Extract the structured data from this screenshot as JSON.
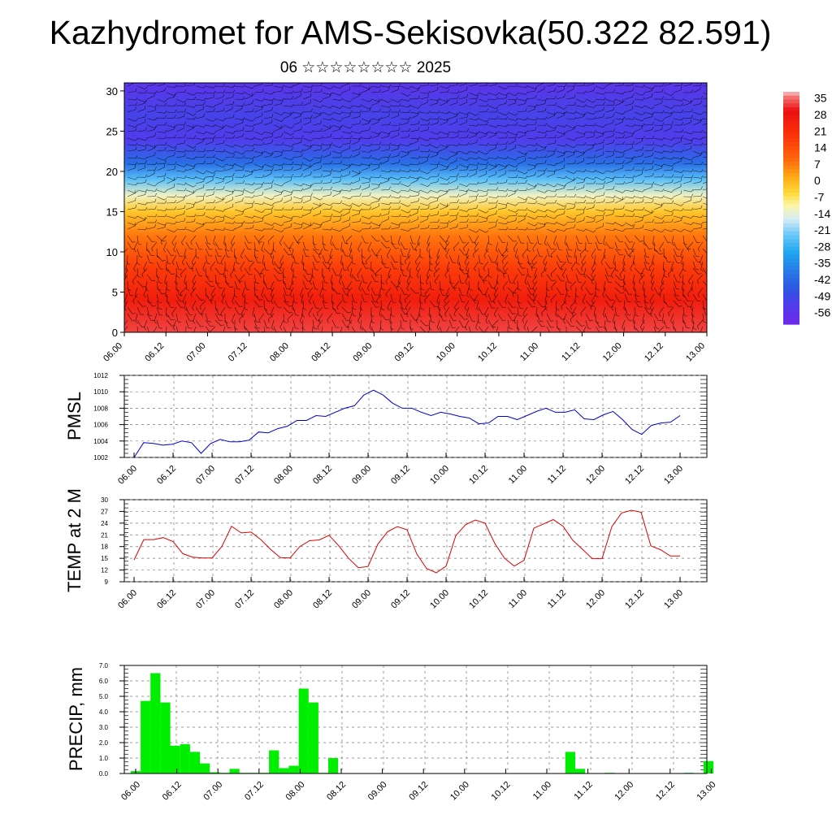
{
  "title": "Kazhydromet for AMS-Sekisovka(50.322 82.591)",
  "subtitle": "06 ☆☆☆☆☆☆☆☆ 2025",
  "time_labels": [
    "06.00",
    "06.12",
    "07.00",
    "07.12",
    "08.00",
    "08.12",
    "09.00",
    "09.12",
    "10.00",
    "10.12",
    "11.00",
    "11.12",
    "12.00",
    "12.12",
    "13.00"
  ],
  "colors": {
    "pmsl_line": "#0000cc",
    "temp_line": "#dd0000",
    "precip_bar": "#00ee00"
  },
  "chart_data": [
    {
      "type": "heatmap",
      "title": "",
      "yticks": [
        "0",
        "5",
        "10",
        "15",
        "20",
        "25",
        "30"
      ],
      "ylim": [
        0,
        31
      ],
      "colorbar_labels": [
        "35",
        "28",
        "21",
        "14",
        "7",
        "0",
        "-7",
        "-14",
        "-21",
        "-28",
        "-35",
        "-42",
        "-49",
        "-56"
      ],
      "colorbar_range": [
        -60,
        38
      ],
      "level_temperature_profile": [
        {
          "level": 0,
          "value": 33
        },
        {
          "level": 4,
          "value": 26
        },
        {
          "level": 8,
          "value": 18
        },
        {
          "level": 12,
          "value": 8
        },
        {
          "level": 15,
          "value": -2
        },
        {
          "level": 17,
          "value": -12
        },
        {
          "level": 19,
          "value": -24
        },
        {
          "level": 21,
          "value": -40
        },
        {
          "level": 24,
          "value": -52
        },
        {
          "level": 27,
          "value": -50
        },
        {
          "level": 31,
          "value": -55
        }
      ],
      "overlay": "wind barbs"
    },
    {
      "type": "line",
      "ylabel": "PMSL",
      "yticks": [
        "1002",
        "1004",
        "1006",
        "1008",
        "1010",
        "1012"
      ],
      "ylim": [
        1002,
        1012
      ],
      "series": [
        {
          "values": [
            1002.0,
            1003.8,
            1003.7,
            1003.5,
            1003.6,
            1004.0,
            1003.8,
            1002.5,
            1003.7,
            1004.2,
            1003.9,
            1003.9,
            1004.1,
            1005.1,
            1005.0,
            1005.5,
            1005.8,
            1006.5,
            1006.5,
            1007.1,
            1007.0,
            1007.5,
            1008.0,
            1008.3,
            1009.6,
            1010.2,
            1009.6,
            1008.6,
            1008.0,
            1008.0,
            1007.5,
            1007.1,
            1007.5,
            1007.3,
            1007.0,
            1006.8,
            1006.1,
            1006.2,
            1007.0,
            1007.0,
            1006.6,
            1007.1,
            1007.6,
            1008.0,
            1007.5,
            1007.5,
            1007.8,
            1006.7,
            1006.6,
            1007.2,
            1007.6,
            1006.6,
            1005.4,
            1004.8,
            1005.9,
            1006.2,
            1006.3,
            1007.1
          ]
        }
      ]
    },
    {
      "type": "line",
      "ylabel": "TEMP at 2 M",
      "yticks": [
        "9",
        "12",
        "15",
        "18",
        "21",
        "24",
        "27",
        "30"
      ],
      "ylim": [
        9,
        30
      ],
      "series": [
        {
          "values": [
            14.6,
            19.8,
            19.8,
            20.3,
            19.3,
            16.2,
            15.3,
            15.1,
            15.1,
            18.0,
            23.2,
            21.5,
            21.7,
            19.8,
            17.3,
            15.2,
            15.1,
            18.0,
            19.5,
            19.7,
            20.9,
            18.2,
            15.0,
            12.6,
            12.9,
            18.6,
            21.8,
            23.1,
            22.3,
            16.1,
            12.4,
            11.3,
            13.0,
            20.8,
            23.6,
            24.8,
            24.0,
            18.8,
            15.0,
            13.0,
            14.5,
            22.7,
            23.8,
            24.9,
            23.2,
            19.6,
            17.3,
            14.9,
            14.9,
            23.1,
            26.6,
            27.3,
            26.8,
            18.2,
            17.2,
            15.6,
            15.6
          ]
        }
      ]
    },
    {
      "type": "bar",
      "ylabel": "PRECIP, mm",
      "yticks": [
        "0.0",
        "1.0",
        "2.0",
        "3.0",
        "4.0",
        "5.0",
        "6.0",
        "7.0"
      ],
      "ylim": [
        0,
        7
      ],
      "values": [
        0.15,
        4.7,
        6.5,
        4.6,
        1.8,
        1.9,
        1.4,
        0.65,
        0.08,
        0.04,
        0.3,
        0.04,
        0.04,
        0.04,
        1.5,
        0.35,
        0.5,
        5.5,
        4.6,
        0.04,
        1.0,
        0,
        0,
        0,
        0,
        0,
        0,
        0,
        0,
        0,
        0,
        0,
        0,
        0,
        0,
        0,
        0,
        0,
        0,
        0,
        0,
        0,
        0,
        0,
        1.4,
        0.3,
        0,
        0,
        0.04,
        0,
        0,
        0,
        0,
        0,
        0,
        0,
        0.04,
        0,
        0.8
      ]
    }
  ]
}
